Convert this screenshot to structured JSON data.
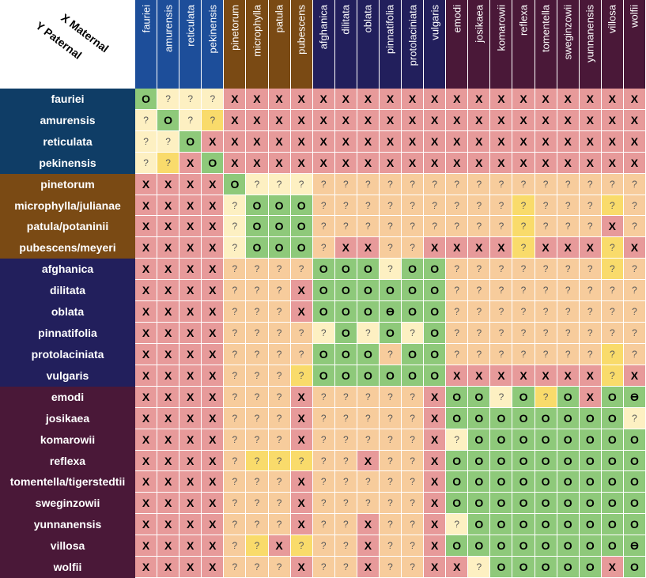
{
  "chart_data": {
    "type": "heatmap",
    "corner_label_x": "X Maternal",
    "corner_label_y": "Y Paternal",
    "columns": [
      "fauriei",
      "amurensis",
      "reticulata",
      "pekinensis",
      "pinetorum",
      "microphylla",
      "patula",
      "pubescens",
      "afghanica",
      "dilitata",
      "oblata",
      "pinnatifolia",
      "protolaciniata",
      "vulgaris",
      "emodi",
      "josikaea",
      "komarowii",
      "reflexa",
      "tomentella",
      "sweginzowii",
      "yunnanensis",
      "villosa",
      "wolfii"
    ],
    "column_groups": [
      1,
      1,
      1,
      1,
      2,
      2,
      2,
      2,
      3,
      3,
      3,
      3,
      3,
      3,
      4,
      4,
      4,
      4,
      4,
      4,
      4,
      4,
      4
    ],
    "rows": [
      "fauriei",
      "amurensis",
      "reticulata",
      "pekinensis",
      "pinetorum",
      "microphylla/julianae",
      "patula/potaninii",
      "pubescens/meyeri",
      "afghanica",
      "dilitata",
      "oblata",
      "pinnatifolia",
      "protolaciniata",
      "vulgaris",
      "emodi",
      "josikaea",
      "komarowii",
      "reflexa",
      "tomentella/tigerstedtii",
      "sweginzowii",
      "yunnanensis",
      "villosa",
      "wolfii"
    ],
    "row_groups": [
      1,
      1,
      1,
      1,
      2,
      2,
      2,
      2,
      3,
      3,
      3,
      3,
      3,
      3,
      4,
      4,
      4,
      4,
      4,
      4,
      4,
      4,
      4
    ],
    "legend": {
      "O": "O",
      "X": "X",
      "?": "?",
      "E": "ϴ"
    },
    "cells": [
      [
        "O",
        "?y",
        "?y",
        "?y",
        "X",
        "X",
        "X",
        "X",
        "X",
        "X",
        "X",
        "X",
        "X",
        "X",
        "X",
        "X",
        "X",
        "X",
        "X",
        "X",
        "X",
        "X",
        "X"
      ],
      [
        "?y",
        "O",
        "?y",
        "?Y",
        "X",
        "X",
        "X",
        "X",
        "X",
        "X",
        "X",
        "X",
        "X",
        "X",
        "X",
        "X",
        "X",
        "X",
        "X",
        "X",
        "X",
        "X",
        "X"
      ],
      [
        "?y",
        "?y",
        "O",
        "X",
        "X",
        "X",
        "X",
        "X",
        "X",
        "X",
        "X",
        "X",
        "X",
        "X",
        "X",
        "X",
        "X",
        "X",
        "X",
        "X",
        "X",
        "X",
        "X"
      ],
      [
        "?y",
        "?Y",
        "X",
        "O",
        "X",
        "X",
        "X",
        "X",
        "X",
        "X",
        "X",
        "X",
        "X",
        "X",
        "X",
        "X",
        "X",
        "X",
        "X",
        "X",
        "X",
        "X",
        "X"
      ],
      [
        "X",
        "X",
        "X",
        "X",
        "O",
        "?y",
        "?y",
        "?y",
        "?",
        "?",
        "?",
        "?",
        "?",
        "?",
        "?",
        "?",
        "?",
        "?",
        "?",
        "?",
        "?",
        "?",
        "?"
      ],
      [
        "X",
        "X",
        "X",
        "X",
        "?y",
        "O",
        "O",
        "O",
        "?",
        "?",
        "?",
        "?",
        "?",
        "?",
        "?",
        "?",
        "?",
        "?Y",
        "?",
        "?",
        "?",
        "?Y",
        "?"
      ],
      [
        "X",
        "X",
        "X",
        "X",
        "?y",
        "O",
        "O",
        "O",
        "?",
        "?",
        "?",
        "?",
        "?",
        "?",
        "?",
        "?",
        "?",
        "?Y",
        "?",
        "?",
        "?",
        "X",
        "?"
      ],
      [
        "X",
        "X",
        "X",
        "X",
        "?y",
        "O",
        "O",
        "O",
        "?",
        "X",
        "X",
        "?",
        "?",
        "X",
        "X",
        "X",
        "X",
        "?Y",
        "X",
        "X",
        "X",
        "?Y",
        "X"
      ],
      [
        "X",
        "X",
        "X",
        "X",
        "?",
        "?",
        "?",
        "?",
        "O",
        "O",
        "O",
        "?y",
        "O",
        "O",
        "?",
        "?",
        "?",
        "?",
        "?",
        "?",
        "?",
        "?Y",
        "?"
      ],
      [
        "X",
        "X",
        "X",
        "X",
        "?",
        "?",
        "?",
        "X",
        "O",
        "O",
        "O",
        "O",
        "O",
        "O",
        "?",
        "?",
        "?",
        "?",
        "?",
        "?",
        "?",
        "?",
        "?"
      ],
      [
        "X",
        "X",
        "X",
        "X",
        "?",
        "?",
        "?",
        "X",
        "O",
        "O",
        "O",
        "E",
        "O",
        "O",
        "?",
        "?",
        "?",
        "?",
        "?",
        "?",
        "?",
        "?",
        "?"
      ],
      [
        "X",
        "X",
        "X",
        "X",
        "?",
        "?",
        "?",
        "?",
        "?y",
        "O",
        "?y",
        "O",
        "?y",
        "O",
        "?",
        "?",
        "?",
        "?",
        "?",
        "?",
        "?",
        "?",
        "?"
      ],
      [
        "X",
        "X",
        "X",
        "X",
        "?",
        "?",
        "?",
        "?",
        "O",
        "O",
        "O",
        "?",
        "O",
        "O",
        "?",
        "?",
        "?",
        "?",
        "?",
        "?",
        "?",
        "?Y",
        "?"
      ],
      [
        "X",
        "X",
        "X",
        "X",
        "?",
        "?",
        "?",
        "?Y",
        "O",
        "O",
        "O",
        "O",
        "O",
        "O",
        "X",
        "X",
        "X",
        "X",
        "X",
        "X",
        "X",
        "?Y",
        "X"
      ],
      [
        "X",
        "X",
        "X",
        "X",
        "?",
        "?",
        "?",
        "X",
        "?",
        "?",
        "?",
        "?",
        "?",
        "X",
        "O",
        "O",
        "?y",
        "O",
        "?Y",
        "O",
        "X",
        "O",
        "E"
      ],
      [
        "X",
        "X",
        "X",
        "X",
        "?",
        "?",
        "?",
        "X",
        "?",
        "?",
        "?",
        "?",
        "?",
        "X",
        "O",
        "O",
        "O",
        "O",
        "O",
        "O",
        "O",
        "O",
        "?y"
      ],
      [
        "X",
        "X",
        "X",
        "X",
        "?",
        "?",
        "?",
        "X",
        "?",
        "?",
        "?",
        "?",
        "?",
        "X",
        "?y",
        "O",
        "O",
        "O",
        "O",
        "O",
        "O",
        "O",
        "O"
      ],
      [
        "X",
        "X",
        "X",
        "X",
        "?",
        "?Y",
        "?Y",
        "?Y",
        "?",
        "?",
        "X",
        "?",
        "?",
        "X",
        "O",
        "O",
        "O",
        "O",
        "O",
        "O",
        "O",
        "O",
        "O"
      ],
      [
        "X",
        "X",
        "X",
        "X",
        "?",
        "?",
        "?",
        "X",
        "?",
        "?",
        "?",
        "?",
        "?",
        "X",
        "O",
        "O",
        "O",
        "O",
        "O",
        "O",
        "O",
        "O",
        "O"
      ],
      [
        "X",
        "X",
        "X",
        "X",
        "?",
        "?",
        "?",
        "X",
        "?",
        "?",
        "?",
        "?",
        "?",
        "X",
        "O",
        "O",
        "O",
        "O",
        "O",
        "O",
        "O",
        "O",
        "O"
      ],
      [
        "X",
        "X",
        "X",
        "X",
        "?",
        "?",
        "?",
        "X",
        "?",
        "?",
        "X",
        "?",
        "?",
        "X",
        "?y",
        "O",
        "O",
        "O",
        "O",
        "O",
        "O",
        "O",
        "O"
      ],
      [
        "X",
        "X",
        "X",
        "X",
        "?",
        "?Y",
        "X",
        "?Y",
        "?",
        "?",
        "X",
        "?",
        "?",
        "X",
        "O",
        "O",
        "O",
        "O",
        "O",
        "O",
        "O",
        "O",
        "E"
      ],
      [
        "X",
        "X",
        "X",
        "X",
        "?",
        "?",
        "?",
        "X",
        "?",
        "?",
        "X",
        "?",
        "?",
        "X",
        "X",
        "?y",
        "O",
        "O",
        "O",
        "O",
        "O",
        "X",
        "O"
      ]
    ],
    "colors": {
      "group1_head": "#1d4e9a",
      "group2_head": "#7a4a14",
      "group3_head": "#221f5c",
      "group4_head": "#4a1838",
      "group1_row": "#0f3d66",
      "group2_row": "#7a4a14",
      "group3_row": "#221f5c",
      "group4_row": "#4a1838",
      "O": "#8ec97a",
      "X": "#e79a9a",
      "?": "#f7cc9c",
      "?y": "#fdf0c2",
      "?Y": "#f9db6b",
      "E": "#8ec97a"
    }
  }
}
